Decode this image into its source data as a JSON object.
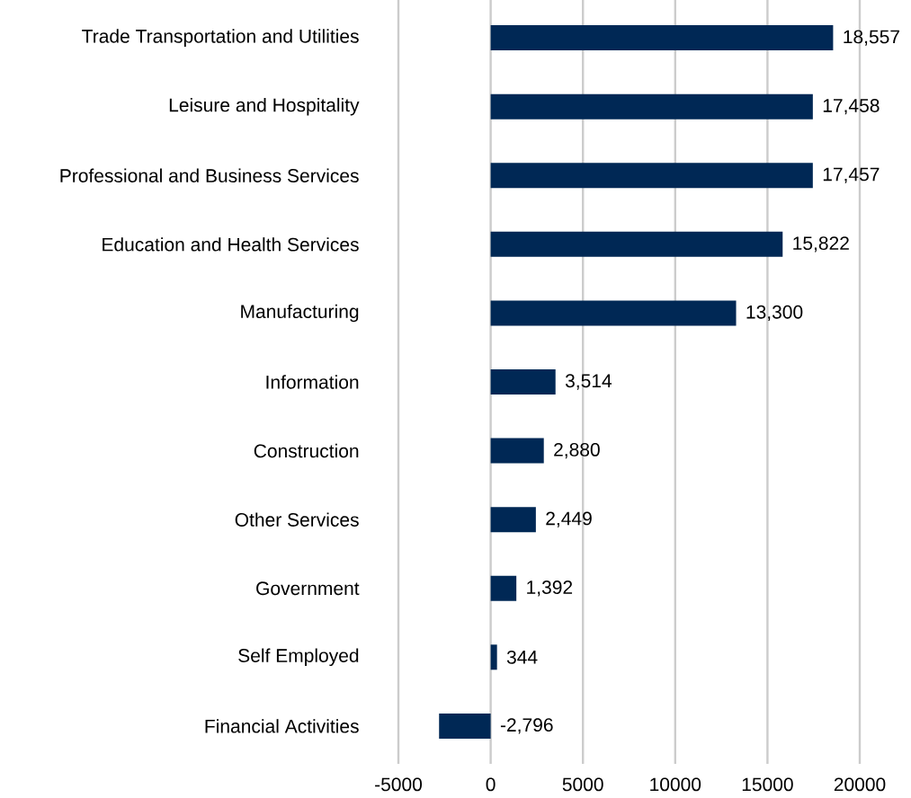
{
  "chart_data": {
    "type": "bar",
    "orientation": "horizontal",
    "categories": [
      "Trade Transportation and Utilities",
      "Leisure and Hospitality",
      "Professional and Business Services",
      "Education and Health Services",
      "Manufacturing",
      "Information",
      "Construction",
      "Other Services",
      "Government",
      "Self Employed",
      "Financial Activities"
    ],
    "values": [
      18557,
      17458,
      17457,
      15822,
      13300,
      3514,
      2880,
      2449,
      1392,
      344,
      -2796
    ],
    "value_labels": [
      "18,557",
      "17,458",
      "17,457",
      "15,822",
      "13,300",
      "3,514",
      "2,880",
      "2,449",
      "1,392",
      "344",
      "-2,796"
    ],
    "color": "#002855",
    "xlim": [
      -5000,
      20000
    ],
    "xticks": [
      -5000,
      0,
      5000,
      10000,
      15000,
      20000
    ],
    "grid": "x"
  }
}
